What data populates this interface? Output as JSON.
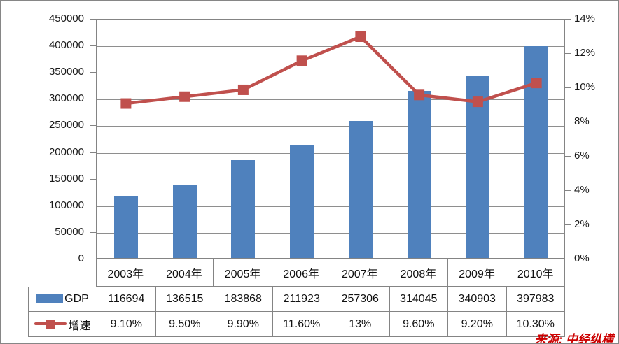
{
  "chart_data": {
    "type": "combo",
    "categories": [
      "2003年",
      "2004年",
      "2005年",
      "2006年",
      "2007年",
      "2008年",
      "2009年",
      "2010年"
    ],
    "series": [
      {
        "name": "GDP",
        "type": "bar",
        "axis": "left",
        "values": [
          116694,
          136515,
          183868,
          211923,
          257306,
          314045,
          340903,
          397983
        ],
        "display": [
          "116694",
          "136515",
          "183868",
          "211923",
          "257306",
          "314045",
          "340903",
          "397983"
        ],
        "color": "#4F81BD"
      },
      {
        "name": "增速",
        "type": "line",
        "axis": "right",
        "values": [
          9.1,
          9.5,
          9.9,
          11.6,
          13,
          9.6,
          9.2,
          10.3
        ],
        "display": [
          "9.10%",
          "9.50%",
          "9.90%",
          "11.60%",
          "13%",
          "9.60%",
          "9.20%",
          "10.30%"
        ],
        "color": "#C0504D"
      }
    ],
    "left_axis": {
      "min": 0,
      "max": 450000,
      "step": 50000,
      "labels": [
        "450000",
        "400000",
        "350000",
        "300000",
        "250000",
        "200000",
        "150000",
        "100000",
        "50000",
        "0"
      ]
    },
    "right_axis": {
      "min": 0,
      "max": 14,
      "step": 2,
      "labels": [
        "14%",
        "12%",
        "10%",
        "8%",
        "6%",
        "4%",
        "2%",
        "0%"
      ]
    },
    "grid": true,
    "legend_position": "data-table-left"
  },
  "source_note": "来源: 中经纵横",
  "colors": {
    "bar": "#4F81BD",
    "line": "#C0504D",
    "gridline": "#8E8E8E",
    "border": "#848484",
    "source_text": "#CC0000"
  }
}
